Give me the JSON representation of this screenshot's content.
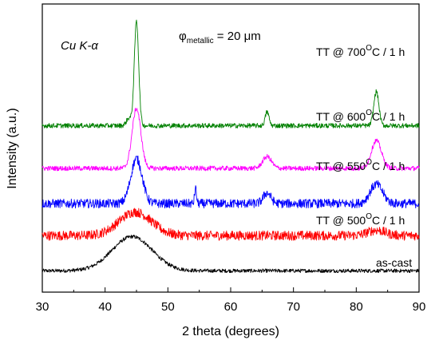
{
  "chart_data": {
    "type": "line",
    "title": "",
    "xlabel": "2 theta (degrees)",
    "ylabel": "Intensity (a.u.)",
    "xlim": [
      30,
      90
    ],
    "x_ticks": [
      30,
      40,
      50,
      60,
      70,
      80,
      90
    ],
    "grid": false,
    "y_ticks_shown": false,
    "annotations": {
      "radiation": "Cu K-α",
      "particle_size_symbol": "φ",
      "particle_size_sub": "metallic",
      "particle_size_value": " = 20 μm"
    },
    "series": [
      {
        "name": "as-cast",
        "label_text": "as-cast",
        "color": "#000000",
        "baseline": 0.0,
        "noise": 0.35,
        "peaks": [
          {
            "x": 44.3,
            "height": 3.2,
            "width": 3.2
          }
        ]
      },
      {
        "name": "TT @ 500°C / 1 h",
        "label_prefix": "TT @ 500",
        "label_sup": "O",
        "label_suffix": "C / 1 h",
        "color": "#ff0000",
        "baseline": 3.3,
        "noise": 0.9,
        "peaks": [
          {
            "x": 44.8,
            "height": 2.2,
            "width": 2.6
          },
          {
            "x": 83.2,
            "height": 0.5,
            "width": 1.4
          }
        ]
      },
      {
        "name": "TT @ 550°C / 1 h",
        "label_prefix": "TT @ 550",
        "label_sup": "O",
        "label_suffix": "C / 1 h",
        "color": "#0000ff",
        "baseline": 6.3,
        "noise": 0.85,
        "peaks": [
          {
            "x": 45.0,
            "height": 4.2,
            "width": 0.9
          },
          {
            "x": 54.4,
            "height": 1.4,
            "width": 0.15
          },
          {
            "x": 65.8,
            "height": 1.0,
            "width": 0.6
          },
          {
            "x": 83.2,
            "height": 1.8,
            "width": 1.0
          }
        ]
      },
      {
        "name": "TT @ 600°C / 1 h",
        "label_prefix": "TT @ 600",
        "label_sup": "O",
        "label_suffix": "C / 1 h",
        "color": "#ff00ff",
        "baseline": 9.6,
        "noise": 0.45,
        "peaks": [
          {
            "x": 45.0,
            "height": 5.6,
            "width": 0.7
          },
          {
            "x": 65.8,
            "height": 1.1,
            "width": 0.7
          },
          {
            "x": 83.2,
            "height": 2.6,
            "width": 0.8
          }
        ]
      },
      {
        "name": "TT @ 700°C / 1 h",
        "label_prefix": "TT @ 700",
        "label_sup": "O",
        "label_suffix": "C / 1 h",
        "color": "#008000",
        "baseline": 13.6,
        "noise": 0.45,
        "peaks": [
          {
            "x": 45.0,
            "height": 9.8,
            "width": 0.35
          },
          {
            "x": 43.8,
            "height": 0.7,
            "width": 0.4
          },
          {
            "x": 65.8,
            "height": 1.3,
            "width": 0.3
          },
          {
            "x": 83.2,
            "height": 3.2,
            "width": 0.4
          }
        ]
      }
    ]
  }
}
